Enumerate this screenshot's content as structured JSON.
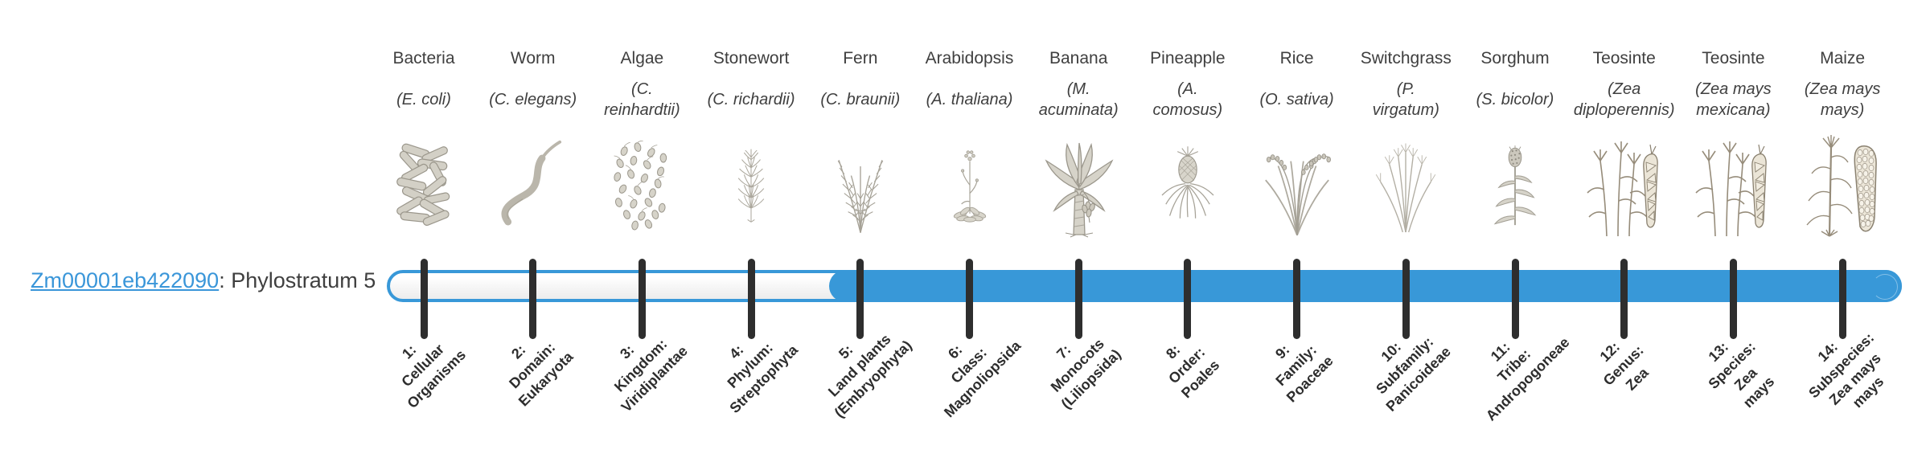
{
  "gene": {
    "id": "Zm00001eb422090",
    "rest": ": Phylostratum 5"
  },
  "phylostratum": 5,
  "colors": {
    "bar_blue": "#3898d8",
    "link_blue": "#3a96d9",
    "tick_dark": "#2e2e2e",
    "text_dark": "#3f3f3f"
  },
  "taxa": [
    {
      "common": "Bacteria",
      "scientific": "(E. coli)",
      "icon": "bacteria",
      "rank_label": "1:\nCellular\nOrganisms"
    },
    {
      "common": "Worm",
      "scientific": "(C. elegans)",
      "icon": "worm",
      "rank_label": "2:\nDomain:\nEukaryota"
    },
    {
      "common": "Algae",
      "scientific": "(C.\nreinhardtii)",
      "icon": "algae",
      "rank_label": "3:\nKingdom:\nViridiplantae"
    },
    {
      "common": "Stonewort",
      "scientific": "(C. richardii)",
      "icon": "stonewort",
      "rank_label": "4:\nPhylum:\nStreptophyta"
    },
    {
      "common": "Fern",
      "scientific": "(C. braunii)",
      "icon": "fern",
      "rank_label": "5:\nLand plants\n(Embryophyta)"
    },
    {
      "common": "Arabidopsis",
      "scientific": "(A. thaliana)",
      "icon": "arabidopsis",
      "rank_label": "6:\nClass:\nMagnoliopsida"
    },
    {
      "common": "Banana",
      "scientific": "(M.\nacuminata)",
      "icon": "banana",
      "rank_label": "7:\nMonocots\n(Liliopsida)"
    },
    {
      "common": "Pineapple",
      "scientific": "(A.\ncomosus)",
      "icon": "pineapple",
      "rank_label": "8:\nOrder:\nPoales"
    },
    {
      "common": "Rice",
      "scientific": "(O. sativa)",
      "icon": "rice",
      "rank_label": "9:\nFamily:\nPoaceae"
    },
    {
      "common": "Switchgrass",
      "scientific": "(P.\nvirgatum)",
      "icon": "switchgrass",
      "rank_label": "10:\nSubfamily:\nPanicoideae"
    },
    {
      "common": "Sorghum",
      "scientific": "(S. bicolor)",
      "icon": "sorghum",
      "rank_label": "11:\nTribe:\nAndropogoneae"
    },
    {
      "common": "Teosinte",
      "scientific": "(Zea\ndiploperennis)",
      "icon": "teosinte",
      "rank_label": "12:\nGenus:\nZea"
    },
    {
      "common": "Teosinte",
      "scientific": "(Zea mays\nmexicana)",
      "icon": "teosinte",
      "rank_label": "13:\nSpecies:\nZea\nmays"
    },
    {
      "common": "Maize",
      "scientific": "(Zea mays\nmays)",
      "icon": "maize",
      "rank_label": "14:\nSubspecies:\nZea mays\nmays"
    }
  ]
}
